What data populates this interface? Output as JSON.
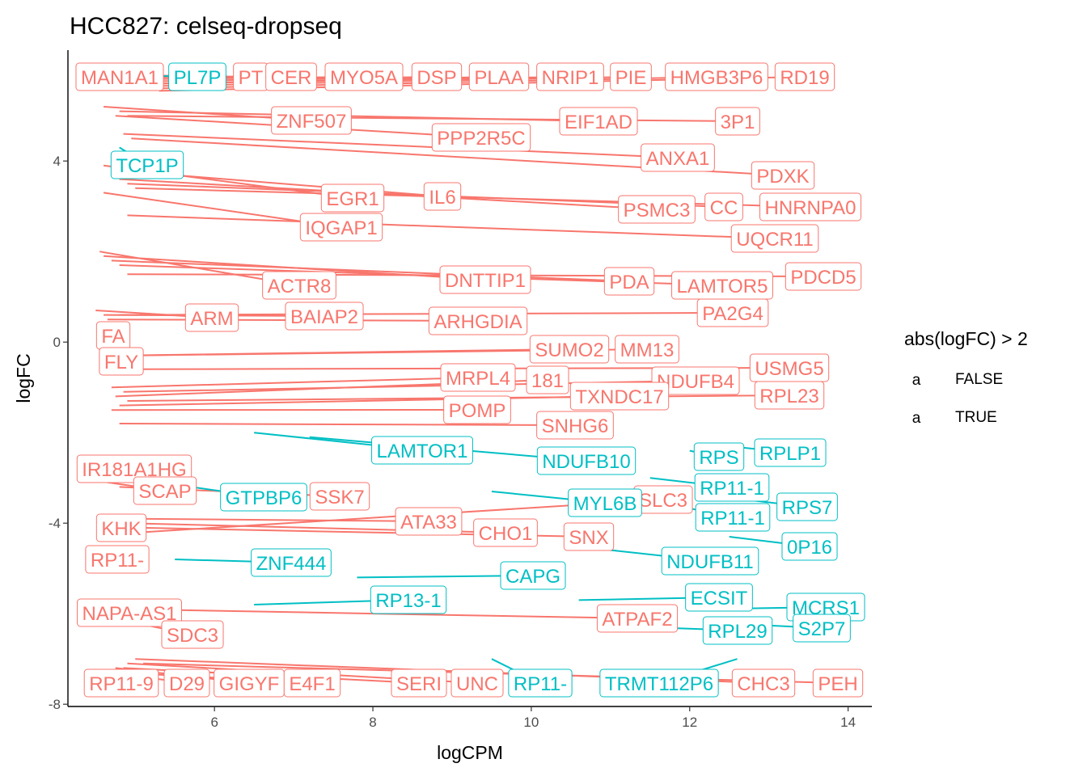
{
  "chart_data": {
    "type": "scatter",
    "title": "HCC827: celseq-dropseq",
    "xlabel": "logCPM",
    "ylabel": "logFC",
    "xlim": [
      4.15,
      14.3
    ],
    "ylim": [
      -8.05,
      6.45
    ],
    "x_ticks": [
      6,
      8,
      10,
      12,
      14
    ],
    "y_ticks": [
      -8,
      -4,
      0,
      4
    ],
    "x_tick_labels": [
      "6",
      "8",
      "10",
      "12",
      "14"
    ],
    "y_tick_labels": [
      "-8",
      "-4",
      "0",
      "4"
    ],
    "legend": {
      "title": "abs(logFC) > 2",
      "position": "right",
      "key_glyph": "a",
      "entries": [
        {
          "label": "FALSE",
          "color": "#F8766D"
        },
        {
          "label": "TRUE",
          "color": "#00BFC4"
        }
      ]
    },
    "series": [
      {
        "name": "FALSE",
        "color": "#F8766D",
        "points": [
          {
            "label": "MAN1A1",
            "x": 4.55,
            "y": 5.9
          },
          {
            "label": "PT",
            "x": 4.7,
            "y": 5.9
          },
          {
            "label": "CER",
            "x": 4.6,
            "y": 5.85
          },
          {
            "label": "MYO5A",
            "x": 4.65,
            "y": 5.8
          },
          {
            "label": "DSP",
            "x": 4.8,
            "y": 5.75
          },
          {
            "label": "PLAA",
            "x": 4.9,
            "y": 5.7
          },
          {
            "label": "NRIP1",
            "x": 5.0,
            "y": 5.7
          },
          {
            "label": "PIE",
            "x": 5.1,
            "y": 5.65
          },
          {
            "label": "HMGB3P6",
            "x": 5.2,
            "y": 5.6
          },
          {
            "label": "RD19",
            "x": 5.3,
            "y": 5.55
          },
          {
            "label": "ZNF507",
            "x": 4.6,
            "y": 5.2
          },
          {
            "label": "PPP2R5C",
            "x": 4.75,
            "y": 5.0
          },
          {
            "label": "EIF1AD",
            "x": 4.8,
            "y": 5.1
          },
          {
            "label": "3P1",
            "x": 4.9,
            "y": 5.0
          },
          {
            "label": "ANXA1",
            "x": 4.85,
            "y": 4.6
          },
          {
            "label": "PDXK",
            "x": 4.95,
            "y": 4.5
          },
          {
            "label": "EGR1",
            "x": 4.6,
            "y": 3.9
          },
          {
            "label": "IL6",
            "x": 4.7,
            "y": 3.8
          },
          {
            "label": "PSMC3",
            "x": 4.8,
            "y": 3.6
          },
          {
            "label": "CC",
            "x": 4.9,
            "y": 3.5
          },
          {
            "label": "HNRNPA0",
            "x": 5.0,
            "y": 3.4
          },
          {
            "label": "IQGAP1",
            "x": 4.6,
            "y": 3.3
          },
          {
            "label": "UQCR11",
            "x": 4.9,
            "y": 2.8
          },
          {
            "label": "ACTR8",
            "x": 4.55,
            "y": 2.0
          },
          {
            "label": "DNTTIP1",
            "x": 4.6,
            "y": 1.9
          },
          {
            "label": "PDA",
            "x": 4.7,
            "y": 1.8
          },
          {
            "label": "LAMTOR5",
            "x": 4.8,
            "y": 1.7
          },
          {
            "label": "PDCD5",
            "x": 4.9,
            "y": 1.5
          },
          {
            "label": "ARM",
            "x": 4.5,
            "y": 0.7
          },
          {
            "label": "BAIAP2",
            "x": 4.6,
            "y": 0.6
          },
          {
            "label": "ARHGDIA",
            "x": 4.65,
            "y": 0.5
          },
          {
            "label": "PA2G4",
            "x": 4.8,
            "y": 0.6
          },
          {
            "label": "FA",
            "x": 4.55,
            "y": 0.2
          },
          {
            "label": "FLY",
            "x": 4.6,
            "y": -0.3
          },
          {
            "label": "SUMO2",
            "x": 4.7,
            "y": -0.3
          },
          {
            "label": "MM13",
            "x": 4.8,
            "y": -0.3
          },
          {
            "label": "USMG5",
            "x": 4.9,
            "y": -0.6
          },
          {
            "label": "MRPL4",
            "x": 4.7,
            "y": -1.0
          },
          {
            "label": "181",
            "x": 4.75,
            "y": -1.2
          },
          {
            "label": "NDUFB4",
            "x": 4.85,
            "y": -1.1
          },
          {
            "label": "TXNDC17",
            "x": 4.8,
            "y": -1.4
          },
          {
            "label": "RPL23",
            "x": 4.9,
            "y": -1.3
          },
          {
            "label": "POMP",
            "x": 4.7,
            "y": -1.5
          },
          {
            "label": "SNHG6",
            "x": 4.8,
            "y": -1.8
          },
          {
            "label": "IR181A1HG",
            "x": 4.6,
            "y": -3.0
          },
          {
            "label": "SCAP",
            "x": 4.65,
            "y": -3.1
          },
          {
            "label": "SSK7",
            "x": 4.8,
            "y": -3.2
          },
          {
            "label": "KHK",
            "x": 4.7,
            "y": -4.0
          },
          {
            "label": "ATA33",
            "x": 4.85,
            "y": -3.9
          },
          {
            "label": "CHO1",
            "x": 4.9,
            "y": -4.0
          },
          {
            "label": "SNX",
            "x": 5.0,
            "y": -4.1
          },
          {
            "label": "SLC3",
            "x": 5.1,
            "y": -4.2
          },
          {
            "label": "RP11-",
            "x": 4.7,
            "y": -4.6
          },
          {
            "label": "NAPA-AS1",
            "x": 4.6,
            "y": -5.8
          },
          {
            "label": "SDC3",
            "x": 4.7,
            "y": -6.1
          },
          {
            "label": "ATPAF2",
            "x": 4.9,
            "y": -5.9
          },
          {
            "label": "RP11-9",
            "x": 4.6,
            "y": -7.3
          },
          {
            "label": "D29",
            "x": 4.7,
            "y": -7.3
          },
          {
            "label": "GIGYF",
            "x": 4.75,
            "y": -7.2
          },
          {
            "label": "E4F1",
            "x": 4.8,
            "y": -7.3
          },
          {
            "label": "SERI",
            "x": 4.85,
            "y": -7.2
          },
          {
            "label": "UNC",
            "x": 4.9,
            "y": -7.1
          },
          {
            "label": "CHC3",
            "x": 5.0,
            "y": -7.0
          },
          {
            "label": "PEH",
            "x": 5.1,
            "y": -7.1
          }
        ]
      },
      {
        "name": "TRUE",
        "color": "#00BFC4",
        "points": [
          {
            "label": "PL7P",
            "x": 4.7,
            "y": 5.9
          },
          {
            "label": "TCP1P",
            "x": 4.8,
            "y": 4.3
          },
          {
            "label": "LAMTOR1",
            "x": 6.5,
            "y": -2.0
          },
          {
            "label": "NDUFB10",
            "x": 7.2,
            "y": -2.1
          },
          {
            "label": "RPLP1",
            "x": 12.5,
            "y": -2.3
          },
          {
            "label": "RPS",
            "x": 12.0,
            "y": -2.4
          },
          {
            "label": "GTPBP6",
            "x": 5.3,
            "y": -3.1
          },
          {
            "label": "RP11-1",
            "x": 11.5,
            "y": -3.0
          },
          {
            "label": "MYL6B",
            "x": 9.5,
            "y": -3.3
          },
          {
            "label": "RP11-1",
            "x": 11.8,
            "y": -3.6
          },
          {
            "label": "RPS7",
            "x": 12.3,
            "y": -3.4
          },
          {
            "label": "0P16",
            "x": 12.5,
            "y": -4.3
          },
          {
            "label": "NDUFB11",
            "x": 10.5,
            "y": -4.5
          },
          {
            "label": "ZNF444",
            "x": 5.5,
            "y": -4.8
          },
          {
            "label": "CAPG",
            "x": 7.8,
            "y": -5.2
          },
          {
            "label": "RP13-1",
            "x": 6.5,
            "y": -5.8
          },
          {
            "label": "ECSIT",
            "x": 10.6,
            "y": -5.7
          },
          {
            "label": "MCRS1",
            "x": 12.2,
            "y": -5.9
          },
          {
            "label": "RPL29",
            "x": 11.5,
            "y": -6.3
          },
          {
            "label": "S2P7",
            "x": 12.3,
            "y": -6.2
          },
          {
            "label": "RP11-",
            "x": 9.5,
            "y": -7.0
          },
          {
            "label": "TRMT112P6",
            "x": 12.6,
            "y": -7.0
          }
        ]
      }
    ]
  }
}
